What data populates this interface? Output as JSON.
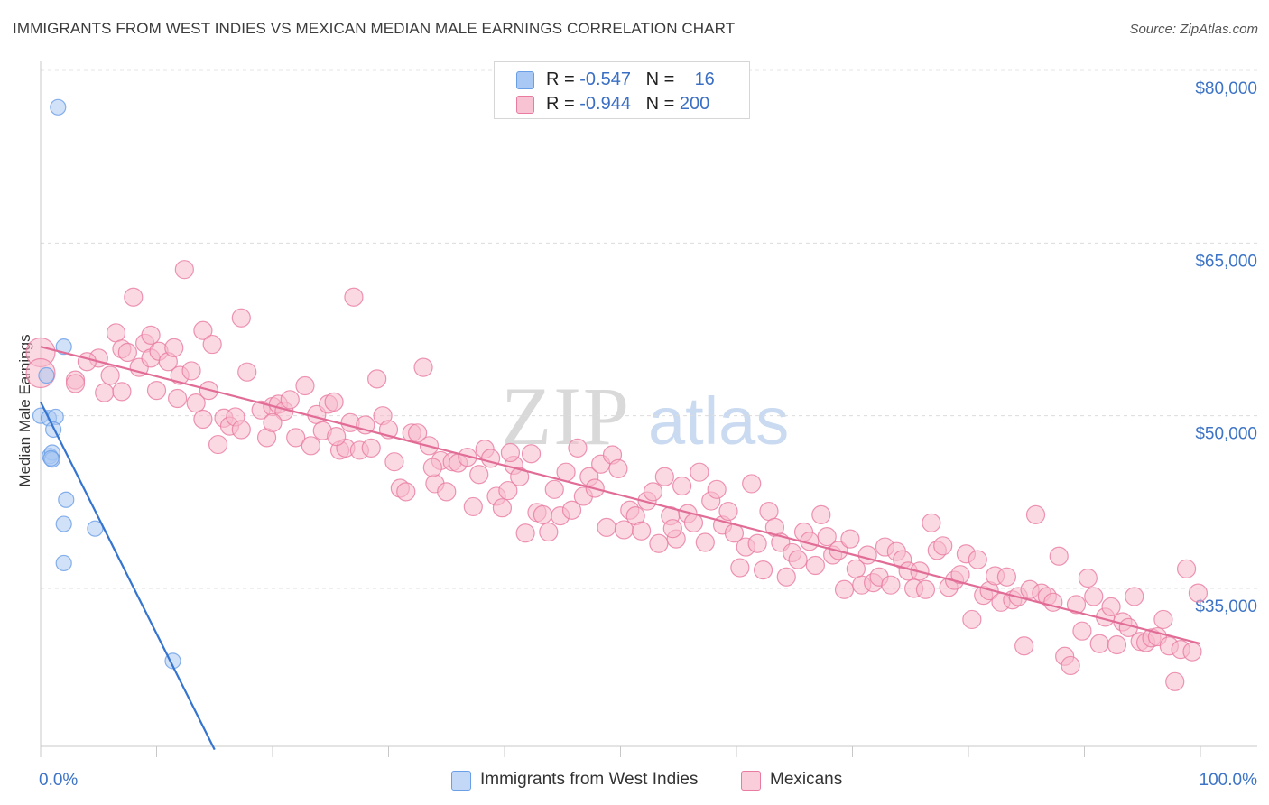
{
  "title": "IMMIGRANTS FROM WEST INDIES VS MEXICAN MEDIAN MALE EARNINGS CORRELATION CHART",
  "source": "Source: ZipAtlas.com",
  "watermark": {
    "zip": "ZIP",
    "atlas": "atlas"
  },
  "legend": {
    "series": [
      {
        "r_label": "R = ",
        "r_value": "-0.547",
        "n_label": "N = ",
        "n_value": "16",
        "color": "#a9c8f3"
      },
      {
        "r_label": "R = ",
        "r_value": "-0.944",
        "n_label": "N = ",
        "n_value": "200",
        "color": "#f8b9cc"
      }
    ]
  },
  "chart_data": {
    "type": "scatter",
    "title": "IMMIGRANTS FROM WEST INDIES VS MEXICAN MEDIAN MALE EARNINGS CORRELATION CHART",
    "ylabel": "Median Male Earnings",
    "xlabel": "",
    "x_tick_labels": [
      "0.0%",
      "100.0%"
    ],
    "y_tick_labels": [
      "$80,000",
      "$65,000",
      "$50,000",
      "$35,000"
    ],
    "y_ticks": [
      80000,
      65000,
      50000,
      35000
    ],
    "xlim": [
      0,
      1.05
    ],
    "ylim": [
      20500,
      82500
    ],
    "grid": true,
    "legend_position": "top-center",
    "series": [
      {
        "name": "Immigrants from West Indies",
        "color": "#6a9ee6",
        "fill": "#a9c8f3",
        "trend": {
          "x0": 0.0,
          "y0": 51200,
          "x1": 0.15,
          "y1": 21000,
          "color": "#3575d0"
        },
        "points": [
          [
            0.015,
            76800
          ],
          [
            0.005,
            53500
          ],
          [
            0.02,
            56000
          ],
          [
            0.0,
            50000
          ],
          [
            0.007,
            49800
          ],
          [
            0.013,
            49900
          ],
          [
            0.011,
            48800
          ],
          [
            0.008,
            46500
          ],
          [
            0.01,
            46800
          ],
          [
            0.01,
            46200
          ],
          [
            0.009,
            46300
          ],
          [
            0.022,
            42700
          ],
          [
            0.02,
            40600
          ],
          [
            0.047,
            40200
          ],
          [
            0.02,
            37200
          ],
          [
            0.114,
            28700
          ]
        ]
      },
      {
        "name": "Mexicans",
        "color": "#e97aa0",
        "fill": "#f8b9cc",
        "trend": {
          "x0": 0.0,
          "y0": 56000,
          "x1": 1.0,
          "y1": 30200,
          "color": "#e16c96"
        },
        "points": [
          [
            0.0,
            55500
          ],
          [
            0.0,
            53700
          ],
          [
            0.03,
            53100
          ],
          [
            0.05,
            55000
          ],
          [
            0.055,
            52000
          ],
          [
            0.06,
            53500
          ],
          [
            0.065,
            57200
          ],
          [
            0.07,
            55800
          ],
          [
            0.075,
            55500
          ],
          [
            0.08,
            60300
          ],
          [
            0.085,
            54200
          ],
          [
            0.09,
            56300
          ],
          [
            0.095,
            55000
          ],
          [
            0.1,
            52200
          ],
          [
            0.102,
            55600
          ],
          [
            0.11,
            54700
          ],
          [
            0.115,
            55900
          ],
          [
            0.12,
            53500
          ],
          [
            0.124,
            62700
          ],
          [
            0.13,
            53900
          ],
          [
            0.134,
            51100
          ],
          [
            0.14,
            57400
          ],
          [
            0.145,
            52200
          ],
          [
            0.148,
            56200
          ],
          [
            0.153,
            47500
          ],
          [
            0.158,
            49800
          ],
          [
            0.163,
            49100
          ],
          [
            0.168,
            49900
          ],
          [
            0.173,
            58500
          ],
          [
            0.178,
            53800
          ],
          [
            0.19,
            50500
          ],
          [
            0.195,
            48100
          ],
          [
            0.2,
            50800
          ],
          [
            0.205,
            51000
          ],
          [
            0.21,
            50400
          ],
          [
            0.215,
            51400
          ],
          [
            0.22,
            48100
          ],
          [
            0.228,
            52600
          ],
          [
            0.233,
            47400
          ],
          [
            0.238,
            50100
          ],
          [
            0.243,
            48700
          ],
          [
            0.248,
            51000
          ],
          [
            0.253,
            51200
          ],
          [
            0.258,
            47000
          ],
          [
            0.263,
            47200
          ],
          [
            0.267,
            49400
          ],
          [
            0.27,
            60300
          ],
          [
            0.275,
            47000
          ],
          [
            0.28,
            49200
          ],
          [
            0.285,
            47200
          ],
          [
            0.29,
            53200
          ],
          [
            0.295,
            50000
          ],
          [
            0.3,
            48800
          ],
          [
            0.305,
            46000
          ],
          [
            0.31,
            43700
          ],
          [
            0.315,
            43400
          ],
          [
            0.32,
            48500
          ],
          [
            0.325,
            48500
          ],
          [
            0.33,
            54200
          ],
          [
            0.335,
            47400
          ],
          [
            0.34,
            44100
          ],
          [
            0.345,
            46100
          ],
          [
            0.35,
            43400
          ],
          [
            0.355,
            46000
          ],
          [
            0.36,
            45900
          ],
          [
            0.368,
            46400
          ],
          [
            0.373,
            42100
          ],
          [
            0.378,
            44900
          ],
          [
            0.383,
            47100
          ],
          [
            0.388,
            46300
          ],
          [
            0.393,
            43000
          ],
          [
            0.398,
            42000
          ],
          [
            0.403,
            43500
          ],
          [
            0.408,
            45700
          ],
          [
            0.413,
            44700
          ],
          [
            0.418,
            39800
          ],
          [
            0.423,
            46700
          ],
          [
            0.428,
            41600
          ],
          [
            0.433,
            41400
          ],
          [
            0.438,
            39900
          ],
          [
            0.443,
            43600
          ],
          [
            0.448,
            41300
          ],
          [
            0.453,
            45100
          ],
          [
            0.458,
            41800
          ],
          [
            0.463,
            47200
          ],
          [
            0.468,
            43000
          ],
          [
            0.473,
            44700
          ],
          [
            0.478,
            43700
          ],
          [
            0.483,
            45800
          ],
          [
            0.488,
            40300
          ],
          [
            0.493,
            46600
          ],
          [
            0.498,
            45400
          ],
          [
            0.503,
            40100
          ],
          [
            0.508,
            41800
          ],
          [
            0.513,
            41300
          ],
          [
            0.518,
            40000
          ],
          [
            0.523,
            42600
          ],
          [
            0.528,
            43400
          ],
          [
            0.533,
            38900
          ],
          [
            0.538,
            44700
          ],
          [
            0.543,
            41300
          ],
          [
            0.548,
            39300
          ],
          [
            0.553,
            43900
          ],
          [
            0.558,
            41500
          ],
          [
            0.563,
            40700
          ],
          [
            0.568,
            45100
          ],
          [
            0.573,
            39000
          ],
          [
            0.578,
            42600
          ],
          [
            0.583,
            43600
          ],
          [
            0.588,
            40500
          ],
          [
            0.593,
            41700
          ],
          [
            0.598,
            39800
          ],
          [
            0.603,
            36800
          ],
          [
            0.608,
            38600
          ],
          [
            0.613,
            44100
          ],
          [
            0.618,
            38900
          ],
          [
            0.623,
            36600
          ],
          [
            0.628,
            41700
          ],
          [
            0.633,
            40300
          ],
          [
            0.638,
            39000
          ],
          [
            0.643,
            36000
          ],
          [
            0.648,
            38100
          ],
          [
            0.653,
            37500
          ],
          [
            0.658,
            39900
          ],
          [
            0.663,
            39100
          ],
          [
            0.668,
            37000
          ],
          [
            0.673,
            41400
          ],
          [
            0.678,
            39500
          ],
          [
            0.683,
            37900
          ],
          [
            0.688,
            38300
          ],
          [
            0.693,
            34900
          ],
          [
            0.698,
            39300
          ],
          [
            0.703,
            36700
          ],
          [
            0.708,
            35300
          ],
          [
            0.713,
            37900
          ],
          [
            0.718,
            35500
          ],
          [
            0.723,
            36000
          ],
          [
            0.728,
            38600
          ],
          [
            0.733,
            35300
          ],
          [
            0.738,
            38200
          ],
          [
            0.743,
            37500
          ],
          [
            0.748,
            36500
          ],
          [
            0.753,
            35000
          ],
          [
            0.758,
            36500
          ],
          [
            0.763,
            34900
          ],
          [
            0.768,
            40700
          ],
          [
            0.773,
            38300
          ],
          [
            0.778,
            38700
          ],
          [
            0.783,
            35100
          ],
          [
            0.788,
            35700
          ],
          [
            0.793,
            36200
          ],
          [
            0.798,
            38000
          ],
          [
            0.803,
            32300
          ],
          [
            0.808,
            37500
          ],
          [
            0.813,
            34400
          ],
          [
            0.818,
            34800
          ],
          [
            0.823,
            36100
          ],
          [
            0.828,
            33800
          ],
          [
            0.833,
            36000
          ],
          [
            0.838,
            34000
          ],
          [
            0.843,
            34300
          ],
          [
            0.848,
            30000
          ],
          [
            0.853,
            34900
          ],
          [
            0.858,
            41400
          ],
          [
            0.863,
            34600
          ],
          [
            0.868,
            34300
          ],
          [
            0.873,
            33800
          ],
          [
            0.878,
            37800
          ],
          [
            0.883,
            29100
          ],
          [
            0.888,
            28300
          ],
          [
            0.893,
            33600
          ],
          [
            0.898,
            31300
          ],
          [
            0.903,
            35900
          ],
          [
            0.908,
            34300
          ],
          [
            0.913,
            30200
          ],
          [
            0.918,
            32500
          ],
          [
            0.923,
            33400
          ],
          [
            0.928,
            30100
          ],
          [
            0.933,
            32100
          ],
          [
            0.938,
            31600
          ],
          [
            0.943,
            34300
          ],
          [
            0.948,
            30400
          ],
          [
            0.953,
            30300
          ],
          [
            0.958,
            30700
          ],
          [
            0.963,
            30800
          ],
          [
            0.968,
            32300
          ],
          [
            0.973,
            30000
          ],
          [
            0.978,
            26900
          ],
          [
            0.983,
            29700
          ],
          [
            0.988,
            36700
          ],
          [
            0.993,
            29500
          ],
          [
            0.998,
            34600
          ],
          [
            0.04,
            54700
          ],
          [
            0.03,
            52800
          ],
          [
            0.07,
            52100
          ],
          [
            0.095,
            57000
          ],
          [
            0.118,
            51500
          ],
          [
            0.14,
            49700
          ],
          [
            0.173,
            48800
          ],
          [
            0.2,
            49400
          ],
          [
            0.255,
            48200
          ],
          [
            0.338,
            45500
          ],
          [
            0.405,
            46800
          ],
          [
            0.545,
            40200
          ]
        ]
      }
    ]
  }
}
